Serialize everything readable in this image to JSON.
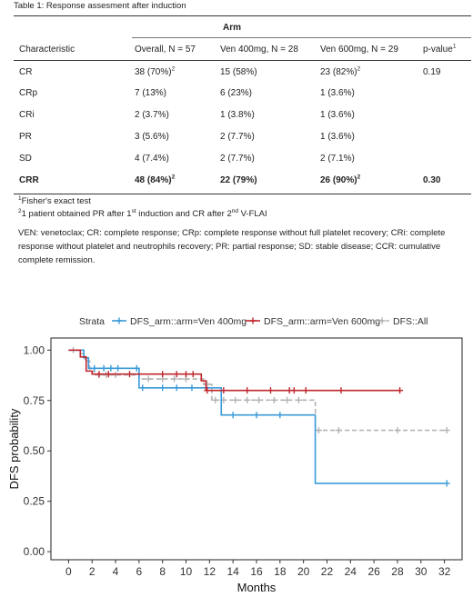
{
  "caption": "Table 1: Response assesment after induction",
  "table": {
    "arm_header": "Arm",
    "columns": [
      {
        "text": "Characteristic",
        "sup": ""
      },
      {
        "text": "Overall, N = 57",
        "sup": ""
      },
      {
        "text": "Ven 400mg, N = 28",
        "sup": ""
      },
      {
        "text": "Ven 600mg, N = 29",
        "sup": ""
      },
      {
        "text": "p-value",
        "sup": "1"
      }
    ],
    "rows": [
      {
        "label": "CR",
        "bold": false,
        "cells": [
          {
            "text": "38 (70%)",
            "sup": "2"
          },
          {
            "text": "15 (58%)",
            "sup": ""
          },
          {
            "text": "23 (82%)",
            "sup": "2"
          },
          {
            "text": "0.19",
            "sup": ""
          }
        ]
      },
      {
        "label": "CRp",
        "bold": false,
        "cells": [
          {
            "text": "7 (13%)",
            "sup": ""
          },
          {
            "text": "6 (23%)",
            "sup": ""
          },
          {
            "text": "1 (3.6%)",
            "sup": ""
          },
          {
            "text": "",
            "sup": ""
          }
        ]
      },
      {
        "label": "CRi",
        "bold": false,
        "cells": [
          {
            "text": "2 (3.7%)",
            "sup": ""
          },
          {
            "text": "1 (3.8%)",
            "sup": ""
          },
          {
            "text": "1 (3.6%)",
            "sup": ""
          },
          {
            "text": "",
            "sup": ""
          }
        ]
      },
      {
        "label": "PR",
        "bold": false,
        "cells": [
          {
            "text": "3 (5.6%)",
            "sup": ""
          },
          {
            "text": "2 (7.7%)",
            "sup": ""
          },
          {
            "text": "1 (3.6%)",
            "sup": ""
          },
          {
            "text": "",
            "sup": ""
          }
        ]
      },
      {
        "label": "SD",
        "bold": false,
        "cells": [
          {
            "text": "4 (7.4%)",
            "sup": ""
          },
          {
            "text": "2 (7.7%)",
            "sup": ""
          },
          {
            "text": "2 (7.1%)",
            "sup": ""
          },
          {
            "text": "",
            "sup": ""
          }
        ]
      },
      {
        "label": "CRR",
        "bold": true,
        "cells": [
          {
            "text": "48 (84%)",
            "sup": "2"
          },
          {
            "text": "22 (79%)",
            "sup": ""
          },
          {
            "text": "26 (90%)",
            "sup": "2"
          },
          {
            "text": "0.30",
            "sup": ""
          }
        ]
      }
    ]
  },
  "footnotes": {
    "fn1_mark": "1",
    "fn1": "Fisher's exact test",
    "fn2_mark": "2",
    "fn2_a": "1 patient obtained PR after 1",
    "fn2_sup1": "st",
    "fn2_b": " induction and CR after 2",
    "fn2_sup2": "nd",
    "fn2_c": " V-FLAI"
  },
  "abbreviations": "VEN: venetoclax; CR: complete response; CRp: complete response without full platelet recovery; CRi: complete response without platelet and neutrophils recovery; PR: partial response; SD: stable disease; CCR: cumulative complete remission.",
  "chart_data": {
    "type": "line",
    "subtype": "kaplan-meier step",
    "legend_title": "Strata",
    "legend_position": "top",
    "xlabel": "Months",
    "ylabel": "DFS probability",
    "xlim": [
      -1.5,
      33.5
    ],
    "ylim": [
      -0.04,
      1.06
    ],
    "x_ticks": [
      0,
      2,
      4,
      6,
      8,
      10,
      12,
      14,
      16,
      18,
      20,
      22,
      24,
      26,
      28,
      30,
      32
    ],
    "y_ticks": [
      0.0,
      0.25,
      0.5,
      0.75,
      1.0
    ],
    "y_tick_labels": [
      "0.00",
      "0.25",
      "0.50",
      "0.75",
      "1.00"
    ],
    "grid": false,
    "series": [
      {
        "name": "DFS_arm::arm=Ven 400mg",
        "color": "#3a9ad9",
        "dash": false,
        "steps": [
          [
            0,
            1.0
          ],
          [
            1.3,
            0.962
          ],
          [
            1.7,
            0.91
          ],
          [
            6.0,
            0.813
          ],
          [
            11.2,
            0.813
          ],
          [
            13.0,
            0.678
          ],
          [
            21.0,
            0.339
          ],
          [
            32.0,
            0.339
          ]
        ],
        "censors": [
          [
            2.2,
            0.91
          ],
          [
            3.0,
            0.91
          ],
          [
            3.6,
            0.91
          ],
          [
            4.2,
            0.91
          ],
          [
            5.8,
            0.91
          ],
          [
            6.3,
            0.813
          ],
          [
            8.0,
            0.813
          ],
          [
            9.2,
            0.813
          ],
          [
            10.5,
            0.813
          ],
          [
            14.0,
            0.678
          ],
          [
            16.0,
            0.678
          ],
          [
            18.0,
            0.678
          ],
          [
            32.2,
            0.339
          ]
        ]
      },
      {
        "name": "DFS_arm::arm=Ven 600mg",
        "color": "#c0272d",
        "dash": false,
        "steps": [
          [
            0,
            1.0
          ],
          [
            1.0,
            0.966
          ],
          [
            1.5,
            0.896
          ],
          [
            2.0,
            0.881
          ],
          [
            6.0,
            0.881
          ],
          [
            11.0,
            0.881
          ],
          [
            11.3,
            0.848
          ],
          [
            11.7,
            0.8
          ],
          [
            28.3,
            0.8
          ]
        ],
        "censors": [
          [
            2.6,
            0.881
          ],
          [
            3.4,
            0.881
          ],
          [
            5.2,
            0.881
          ],
          [
            8.0,
            0.881
          ],
          [
            9.2,
            0.881
          ],
          [
            10.0,
            0.881
          ],
          [
            10.6,
            0.881
          ],
          [
            11.8,
            0.8
          ],
          [
            13.2,
            0.8
          ],
          [
            15.2,
            0.8
          ],
          [
            17.2,
            0.8
          ],
          [
            18.8,
            0.8
          ],
          [
            19.2,
            0.8
          ],
          [
            20.2,
            0.8
          ],
          [
            23.2,
            0.8
          ],
          [
            28.2,
            0.8
          ]
        ]
      },
      {
        "name": "DFS::All",
        "color": "#b3b3b3",
        "dash": true,
        "steps": [
          [
            0,
            1.0
          ],
          [
            1.0,
            0.982
          ],
          [
            1.4,
            0.946
          ],
          [
            1.8,
            0.895
          ],
          [
            2.2,
            0.877
          ],
          [
            6.0,
            0.857
          ],
          [
            11.0,
            0.857
          ],
          [
            11.5,
            0.83
          ],
          [
            12.2,
            0.752
          ],
          [
            21.0,
            0.752
          ],
          [
            21.01,
            0.602
          ],
          [
            32.0,
            0.602
          ]
        ],
        "censors": [
          [
            0.4,
            1.0
          ],
          [
            2.6,
            0.877
          ],
          [
            3.2,
            0.877
          ],
          [
            4.0,
            0.877
          ],
          [
            6.8,
            0.857
          ],
          [
            8.0,
            0.857
          ],
          [
            9.0,
            0.857
          ],
          [
            10.0,
            0.857
          ],
          [
            11.8,
            0.83
          ],
          [
            12.5,
            0.752
          ],
          [
            13.2,
            0.752
          ],
          [
            14.2,
            0.752
          ],
          [
            15.2,
            0.752
          ],
          [
            16.2,
            0.752
          ],
          [
            17.5,
            0.752
          ],
          [
            18.6,
            0.752
          ],
          [
            19.6,
            0.752
          ],
          [
            21.3,
            0.602
          ],
          [
            23.0,
            0.602
          ],
          [
            28.0,
            0.602
          ],
          [
            32.2,
            0.602
          ]
        ]
      }
    ]
  }
}
